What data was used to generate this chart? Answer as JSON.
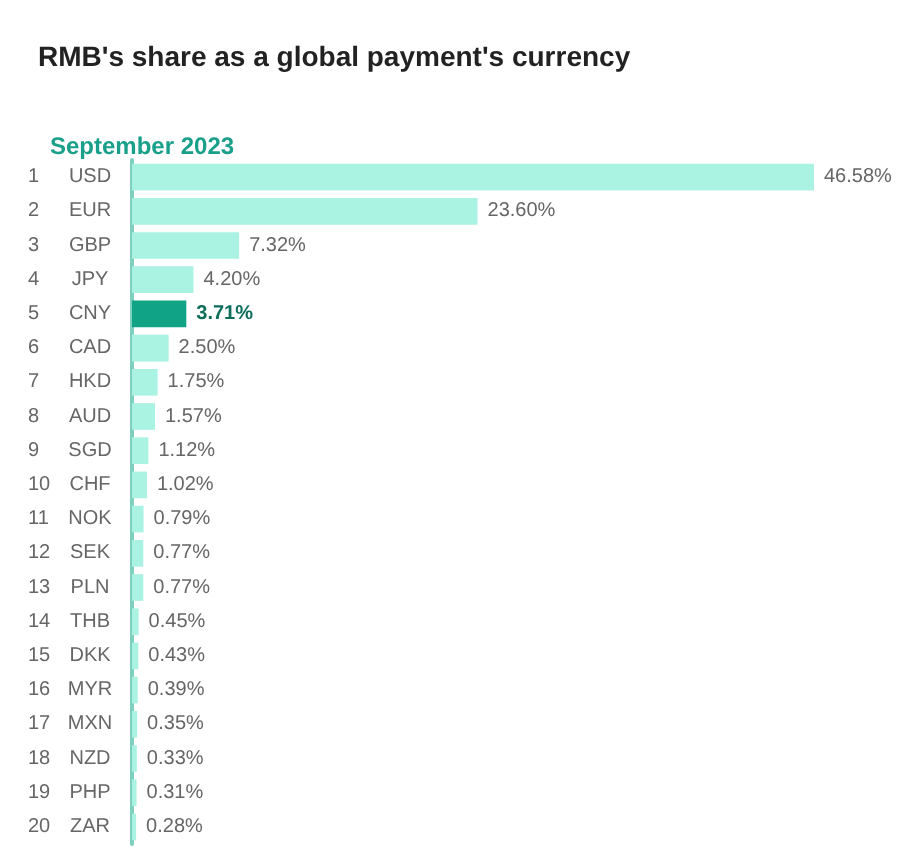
{
  "chart_data": {
    "type": "bar",
    "orientation": "horizontal",
    "title": "RMB's share as a global payment's currency",
    "subtitle": "September 2023",
    "categories": [
      "1 USD",
      "2 EUR",
      "3 GBP",
      "4 JPY",
      "5 CNY",
      "6 CAD",
      "7 HKD",
      "8 AUD",
      "9 SGD",
      "10 CHF",
      "11 NOK",
      "12 SEK",
      "13 PLN",
      "14 THB",
      "15 DKK",
      "16 MYR",
      "17 MXN",
      "18 NZD",
      "19 PHP",
      "20 ZAR"
    ],
    "values": [
      46.58,
      23.6,
      7.32,
      4.2,
      3.71,
      2.5,
      1.75,
      1.57,
      1.12,
      1.02,
      0.79,
      0.77,
      0.77,
      0.45,
      0.43,
      0.39,
      0.35,
      0.33,
      0.31,
      0.28
    ],
    "colors": [
      "#aaf2e2",
      "#aaf2e2",
      "#aaf2e2",
      "#aaf2e2",
      "#11a386",
      "#aaf2e2",
      "#aaf2e2",
      "#aaf2e2",
      "#aaf2e2",
      "#aaf2e2",
      "#aaf2e2",
      "#aaf2e2",
      "#aaf2e2",
      "#aaf2e2",
      "#aaf2e2",
      "#aaf2e2",
      "#aaf2e2",
      "#aaf2e2",
      "#aaf2e2",
      "#aaf2e2"
    ],
    "value_labels": [
      "46.58%",
      "23.60%",
      "7.32%",
      "4.20%",
      "3.71%",
      "2.50%",
      "1.75%",
      "1.57%",
      "1.12%",
      "1.02%",
      "0.79%",
      "0.77%",
      "0.77%",
      "0.45%",
      "0.43%",
      "0.39%",
      "0.35%",
      "0.33%",
      "0.31%",
      "0.28%"
    ]
  }
}
